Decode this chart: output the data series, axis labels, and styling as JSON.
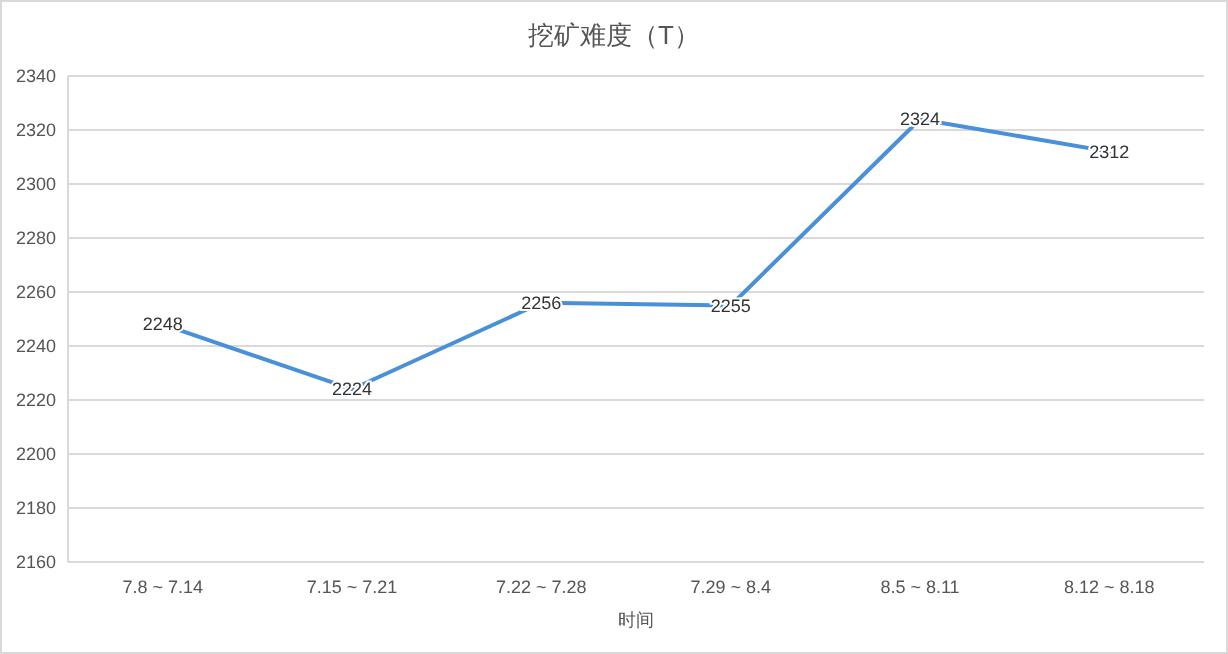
{
  "chart_data": {
    "type": "line",
    "title": "挖矿难度（T）",
    "xlabel": "时间",
    "categories": [
      "7.8 ~ 7.14",
      "7.15 ~ 7.21",
      "7.22 ~ 7.28",
      "7.29 ~ 8.4",
      "8.5 ~ 8.11",
      "8.12 ~ 8.18"
    ],
    "series": [
      {
        "color": "#4a90d9",
        "values": [
          2248,
          2224,
          2256,
          2255,
          2324,
          2312
        ]
      }
    ],
    "ylim": [
      2160,
      2340
    ],
    "yticks": [
      2160,
      2180,
      2200,
      2220,
      2240,
      2260,
      2280,
      2300,
      2320,
      2340
    ],
    "grid": "y",
    "data_labels": true,
    "marker": "none",
    "line_style": "solid"
  }
}
